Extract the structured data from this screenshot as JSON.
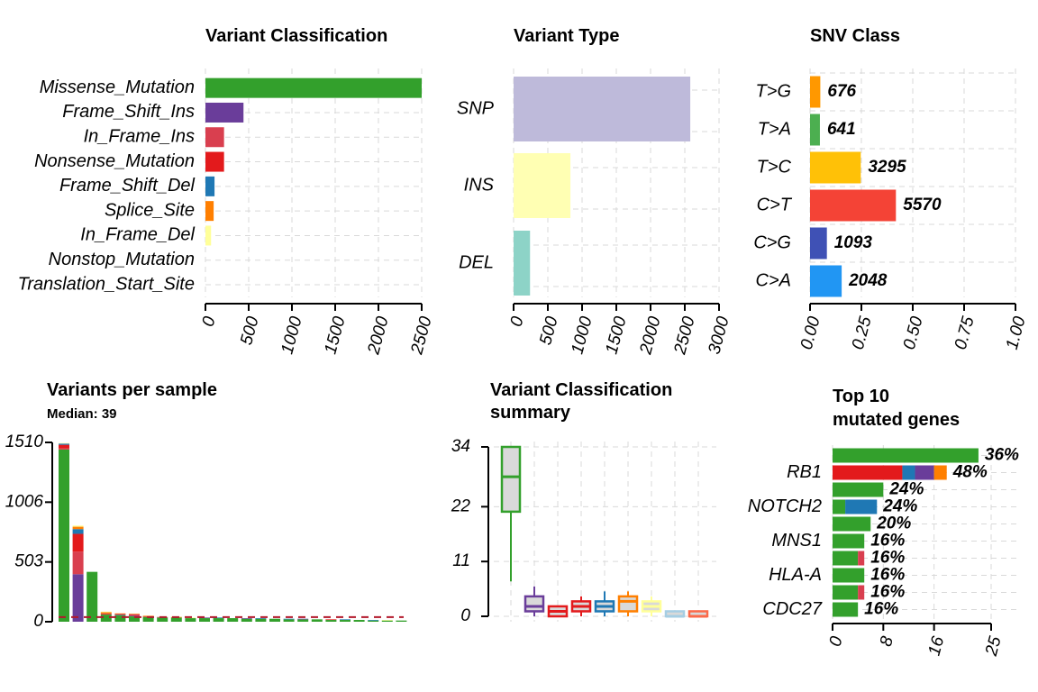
{
  "chart_data": [
    {
      "type": "bar",
      "title": "Variant Classification",
      "orientation": "horizontal",
      "categories": [
        "Missense_Mutation",
        "Frame_Shift_Ins",
        "In_Frame_Ins",
        "Nonsense_Mutation",
        "Frame_Shift_Del",
        "Splice_Site",
        "In_Frame_Del",
        "Nonstop_Mutation",
        "Translation_Start_Site"
      ],
      "values": [
        2500,
        440,
        215,
        215,
        105,
        95,
        65,
        0,
        0
      ],
      "colors": [
        "#33a02c",
        "#6a3d9a",
        "#d93f4f",
        "#e31a1c",
        "#1f78b4",
        "#ff7f00",
        "#ffff99",
        "#b15928",
        "#000000"
      ],
      "ticks": [
        "0",
        "500",
        "1000",
        "1500",
        "2000",
        "2500"
      ],
      "xlim": [
        0,
        2500
      ]
    },
    {
      "type": "bar",
      "title": "Variant Type",
      "orientation": "horizontal",
      "categories": [
        "SNP",
        "INS",
        "DEL"
      ],
      "values": [
        2580,
        830,
        240
      ],
      "colors": [
        "#bebada",
        "#ffffb3",
        "#8dd3c7"
      ],
      "ticks": [
        "0",
        "500",
        "1000",
        "1500",
        "2000",
        "2500",
        "3000"
      ],
      "xlim": [
        0,
        3000
      ]
    },
    {
      "type": "bar",
      "title": "SNV Class",
      "orientation": "horizontal",
      "categories": [
        "T>G",
        "T>A",
        "T>C",
        "C>T",
        "C>G",
        "C>A"
      ],
      "counts": [
        "676",
        "641",
        "3295",
        "5570",
        "1093",
        "2048"
      ],
      "values": [
        0.05,
        0.048,
        0.247,
        0.418,
        0.082,
        0.154
      ],
      "colors": [
        "#ff9800",
        "#4caf50",
        "#ffc107",
        "#f44336",
        "#3f51b5",
        "#2196f3"
      ],
      "ticks": [
        "0.00",
        "0.25",
        "0.50",
        "0.75",
        "1.00"
      ],
      "xlim": [
        0,
        1
      ]
    },
    {
      "type": "bar",
      "stacked": true,
      "title": "Variants per sample",
      "subtitle": "Median: 39",
      "yticks": [
        "0",
        "503",
        "1006",
        "1510"
      ],
      "ylim": [
        0,
        1510
      ],
      "median": 39,
      "segment_colors": [
        "#33a02c",
        "#6a3d9a",
        "#d93f4f",
        "#e31a1c",
        "#1f78b4",
        "#ff7f00",
        "#ffff99"
      ],
      "samples": [
        [
          1450,
          0,
          10,
          30,
          10,
          0,
          5
        ],
        [
          0,
          400,
          190,
          150,
          40,
          20,
          10
        ],
        [
          420,
          0,
          0,
          0,
          0,
          0,
          0
        ],
        [
          60,
          0,
          5,
          5,
          0,
          10,
          5
        ],
        [
          55,
          5,
          0,
          5,
          0,
          5,
          0
        ],
        [
          45,
          5,
          5,
          10,
          0,
          0,
          5
        ],
        [
          40,
          0,
          0,
          5,
          0,
          5,
          0
        ],
        [
          35,
          0,
          5,
          0,
          0,
          0,
          0
        ],
        [
          35,
          0,
          0,
          0,
          0,
          5,
          0
        ],
        [
          30,
          0,
          0,
          0,
          0,
          0,
          5
        ],
        [
          30,
          5,
          0,
          0,
          0,
          0,
          0
        ],
        [
          30,
          0,
          0,
          0,
          5,
          0,
          0
        ],
        [
          30,
          0,
          0,
          0,
          0,
          0,
          0
        ],
        [
          25,
          5,
          0,
          0,
          0,
          0,
          0
        ],
        [
          25,
          0,
          0,
          0,
          5,
          0,
          0
        ],
        [
          25,
          0,
          0,
          0,
          0,
          0,
          0
        ],
        [
          20,
          0,
          0,
          0,
          5,
          0,
          0
        ],
        [
          20,
          5,
          0,
          0,
          0,
          0,
          0
        ],
        [
          20,
          0,
          0,
          0,
          0,
          0,
          0
        ],
        [
          15,
          0,
          0,
          5,
          0,
          0,
          0
        ],
        [
          15,
          0,
          0,
          0,
          5,
          0,
          0
        ],
        [
          15,
          0,
          0,
          0,
          0,
          0,
          0
        ],
        [
          10,
          0,
          0,
          0,
          5,
          0,
          0
        ],
        [
          10,
          0,
          0,
          0,
          0,
          0,
          5
        ],
        [
          10,
          0,
          0,
          0,
          0,
          0,
          0
        ]
      ]
    },
    {
      "type": "boxplot",
      "title": "Variant Classification summary",
      "title_lines": [
        "Variant Classification",
        "summary"
      ],
      "yticks": [
        "0",
        "11",
        "22",
        "34"
      ],
      "ylim": [
        0,
        34
      ],
      "boxes": [
        {
          "min": 7,
          "q1": 21,
          "median": 28,
          "q3": 34,
          "max": 34,
          "color": "#33a02c"
        },
        {
          "min": 0,
          "q1": 1,
          "median": 2,
          "q3": 4,
          "max": 6,
          "color": "#6a3d9a"
        },
        {
          "min": 0,
          "q1": 0,
          "median": 1,
          "q3": 2,
          "max": 2,
          "color": "#e31a1c"
        },
        {
          "min": 0,
          "q1": 1,
          "median": 2,
          "q3": 3,
          "max": 4,
          "color": "#e31a1c"
        },
        {
          "min": 0,
          "q1": 1,
          "median": 2,
          "q3": 3,
          "max": 5,
          "color": "#1f78b4"
        },
        {
          "min": 0,
          "q1": 1,
          "median": 3,
          "q3": 4,
          "max": 5,
          "color": "#ff7f00"
        },
        {
          "min": 0,
          "q1": 1,
          "median": 2,
          "q3": 3,
          "max": 4,
          "color": "#ffff99"
        },
        {
          "min": 0,
          "q1": 0,
          "median": 0,
          "q3": 1,
          "max": 1,
          "color": "#a6cee3"
        },
        {
          "min": 0,
          "q1": 0,
          "median": 0,
          "q3": 1,
          "max": 1,
          "color": "#fb6a4a"
        }
      ]
    },
    {
      "type": "bar",
      "stacked": true,
      "orientation": "horizontal",
      "title": "Top 10",
      "title_lines": [
        "Top 10",
        "mutated genes"
      ],
      "labeled_rows": [
        1,
        3,
        5,
        7,
        9
      ],
      "genes": [
        "",
        "RB1",
        "",
        "NOTCH2",
        "",
        "MNS1",
        "",
        "HLA-A",
        "",
        "CDC27"
      ],
      "percents": [
        "36%",
        "48%",
        "24%",
        "24%",
        "20%",
        "16%",
        "16%",
        "16%",
        "16%",
        "16%"
      ],
      "segments": [
        [
          {
            "v": 23,
            "c": "#33a02c"
          }
        ],
        [
          {
            "v": 11,
            "c": "#e31a1c"
          },
          {
            "v": 2,
            "c": "#1f78b4"
          },
          {
            "v": 3,
            "c": "#6a3d9a"
          },
          {
            "v": 2,
            "c": "#ff7f00"
          }
        ],
        [
          {
            "v": 8,
            "c": "#33a02c"
          }
        ],
        [
          {
            "v": 2,
            "c": "#33a02c"
          },
          {
            "v": 5,
            "c": "#1f78b4"
          }
        ],
        [
          {
            "v": 6,
            "c": "#33a02c"
          }
        ],
        [
          {
            "v": 5,
            "c": "#33a02c"
          }
        ],
        [
          {
            "v": 4,
            "c": "#33a02c"
          },
          {
            "v": 1,
            "c": "#d93f4f"
          }
        ],
        [
          {
            "v": 5,
            "c": "#33a02c"
          }
        ],
        [
          {
            "v": 4,
            "c": "#33a02c"
          },
          {
            "v": 1,
            "c": "#d93f4f"
          }
        ],
        [
          {
            "v": 4,
            "c": "#33a02c"
          }
        ]
      ],
      "ticks": [
        "0",
        "8",
        "16",
        "25"
      ],
      "xlim": [
        0,
        25
      ]
    }
  ]
}
